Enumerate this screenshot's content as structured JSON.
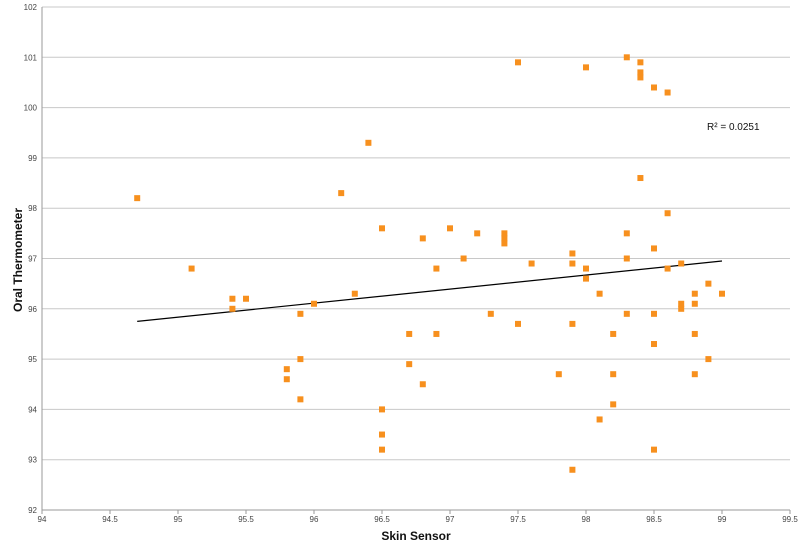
{
  "chart_data": {
    "type": "scatter",
    "title": "",
    "xlabel": "Skin Sensor",
    "ylabel": "Oral Thermometer",
    "xlim": [
      94,
      99.5
    ],
    "ylim": [
      92,
      102
    ],
    "x_ticks": [
      "94",
      "94.5",
      "95",
      "95.5",
      "96",
      "96.5",
      "97",
      "97.5",
      "98",
      "98.5",
      "99",
      "99.5"
    ],
    "y_ticks": [
      "92",
      "93",
      "94",
      "95",
      "96",
      "97",
      "98",
      "99",
      "100",
      "101",
      "102"
    ],
    "grid": "horizontal",
    "marker_color": "#F7901E",
    "trendline_color": "#000000",
    "r_squared_label": "R² = 0.0251",
    "trendline": {
      "x": [
        94.7,
        99.0
      ],
      "y": [
        95.75,
        96.95
      ]
    },
    "points": [
      [
        94.7,
        98.2
      ],
      [
        95.1,
        96.8
      ],
      [
        95.4,
        96.2
      ],
      [
        95.4,
        96.0
      ],
      [
        95.5,
        96.2
      ],
      [
        95.8,
        94.8
      ],
      [
        95.8,
        94.6
      ],
      [
        95.9,
        95.9
      ],
      [
        95.9,
        95.0
      ],
      [
        95.9,
        94.2
      ],
      [
        96.0,
        96.1
      ],
      [
        96.2,
        98.3
      ],
      [
        96.3,
        96.3
      ],
      [
        96.4,
        99.3
      ],
      [
        96.5,
        97.6
      ],
      [
        96.5,
        94.0
      ],
      [
        96.5,
        93.5
      ],
      [
        96.5,
        93.2
      ],
      [
        96.7,
        95.5
      ],
      [
        96.7,
        94.9
      ],
      [
        96.8,
        97.4
      ],
      [
        96.8,
        94.5
      ],
      [
        96.9,
        96.8
      ],
      [
        96.9,
        95.5
      ],
      [
        97.0,
        97.6
      ],
      [
        97.1,
        97.0
      ],
      [
        97.2,
        97.5
      ],
      [
        97.3,
        95.9
      ],
      [
        97.4,
        97.5
      ],
      [
        97.4,
        97.4
      ],
      [
        97.4,
        97.3
      ],
      [
        97.5,
        100.9
      ],
      [
        97.5,
        95.7
      ],
      [
        97.6,
        96.9
      ],
      [
        97.8,
        94.7
      ],
      [
        97.9,
        97.1
      ],
      [
        97.9,
        96.9
      ],
      [
        97.9,
        95.7
      ],
      [
        97.9,
        92.8
      ],
      [
        98.0,
        100.8
      ],
      [
        98.0,
        96.8
      ],
      [
        98.0,
        96.6
      ],
      [
        98.1,
        96.3
      ],
      [
        98.1,
        93.8
      ],
      [
        98.2,
        95.5
      ],
      [
        98.2,
        94.7
      ],
      [
        98.2,
        94.1
      ],
      [
        98.3,
        101.0
      ],
      [
        98.3,
        97.5
      ],
      [
        98.3,
        97.0
      ],
      [
        98.3,
        95.9
      ],
      [
        98.4,
        100.9
      ],
      [
        98.4,
        100.7
      ],
      [
        98.4,
        100.6
      ],
      [
        98.4,
        98.6
      ],
      [
        98.5,
        100.4
      ],
      [
        98.5,
        97.2
      ],
      [
        98.5,
        95.9
      ],
      [
        98.5,
        95.3
      ],
      [
        98.5,
        93.2
      ],
      [
        98.6,
        100.3
      ],
      [
        98.6,
        97.9
      ],
      [
        98.6,
        96.8
      ],
      [
        98.7,
        96.9
      ],
      [
        98.7,
        96.1
      ],
      [
        98.7,
        96.0
      ],
      [
        98.8,
        96.3
      ],
      [
        98.8,
        96.1
      ],
      [
        98.8,
        95.5
      ],
      [
        98.8,
        94.7
      ],
      [
        98.9,
        96.5
      ],
      [
        98.9,
        95.0
      ],
      [
        99.0,
        96.3
      ]
    ]
  }
}
